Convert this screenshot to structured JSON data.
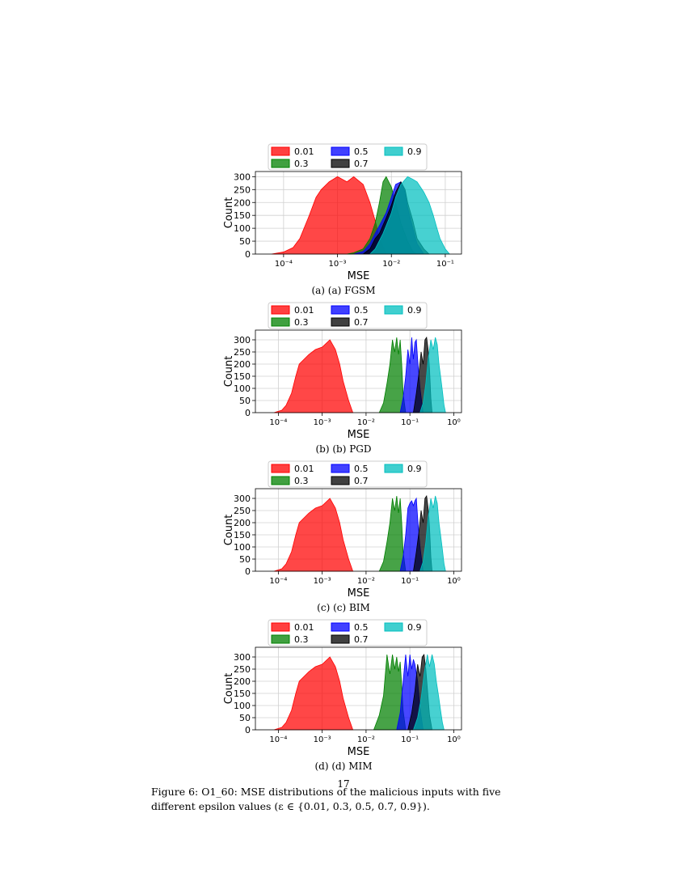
{
  "page_number": "17",
  "caption": "Figure 6: O1_60: MSE distributions of the malicious inputs with five different epsilon values (ε ∈ {0.01, 0.3, 0.5, 0.7, 0.9}).",
  "colors": {
    "0.01": "#ff0000",
    "0.3": "#008000",
    "0.5": "#0000ff",
    "0.7": "#000000",
    "0.9": "#00bfbf"
  },
  "chart_data": [
    {
      "type": "area",
      "subcaption": "(a) (a) FGSM",
      "xlabel": "MSE",
      "ylabel": "Count",
      "xscale": "log",
      "xlim": [
        3e-05,
        0.2
      ],
      "ylim": [
        0,
        320
      ],
      "xticks": [
        "10⁻⁴",
        "10⁻³",
        "10⁻²",
        "10⁻¹"
      ],
      "xtick_values": [
        0.0001,
        0.001,
        0.01,
        0.1
      ],
      "yticks": [
        0,
        50,
        100,
        150,
        200,
        250,
        300
      ],
      "grid": true,
      "legend_placement": "top-center",
      "series": [
        {
          "name": "0.01",
          "color": "#ff0000",
          "x": [
            6e-05,
            0.0001,
            0.00015,
            0.0002,
            0.0003,
            0.0004,
            0.0005,
            0.0007,
            0.001,
            0.0015,
            0.002,
            0.003,
            0.004,
            0.005,
            0.006,
            0.008
          ],
          "values": [
            0,
            8,
            25,
            60,
            150,
            220,
            250,
            280,
            300,
            280,
            300,
            270,
            200,
            130,
            60,
            0
          ]
        },
        {
          "name": "0.3",
          "color": "#008000",
          "x": [
            0.0015,
            0.002,
            0.003,
            0.004,
            0.005,
            0.006,
            0.007,
            0.008,
            0.01,
            0.012,
            0.015,
            0.02,
            0.025,
            0.03
          ],
          "values": [
            0,
            5,
            20,
            60,
            120,
            200,
            280,
            300,
            260,
            200,
            120,
            50,
            10,
            0
          ]
        },
        {
          "name": "0.5",
          "color": "#0000ff",
          "x": [
            0.002,
            0.003,
            0.004,
            0.005,
            0.006,
            0.008,
            0.01,
            0.012,
            0.015,
            0.018,
            0.02,
            0.025,
            0.03,
            0.04
          ],
          "values": [
            0,
            10,
            40,
            80,
            110,
            160,
            220,
            270,
            280,
            240,
            180,
            100,
            40,
            0
          ]
        },
        {
          "name": "0.7",
          "color": "#000000",
          "x": [
            0.003,
            0.004,
            0.005,
            0.006,
            0.008,
            0.01,
            0.012,
            0.015,
            0.018,
            0.02,
            0.025,
            0.03,
            0.04,
            0.05
          ],
          "values": [
            0,
            20,
            60,
            80,
            140,
            190,
            240,
            280,
            250,
            200,
            130,
            60,
            20,
            0
          ]
        },
        {
          "name": "0.9",
          "color": "#00bfbf",
          "x": [
            0.004,
            0.005,
            0.007,
            0.01,
            0.012,
            0.015,
            0.02,
            0.025,
            0.03,
            0.04,
            0.05,
            0.06,
            0.07,
            0.08,
            0.1,
            0.12
          ],
          "values": [
            0,
            20,
            80,
            160,
            220,
            270,
            300,
            290,
            280,
            240,
            200,
            150,
            100,
            60,
            20,
            0
          ]
        }
      ]
    },
    {
      "type": "area",
      "subcaption": "(b) (b) PGD",
      "xlabel": "MSE",
      "ylabel": "Count",
      "xscale": "log",
      "xlim": [
        3e-05,
        1.5
      ],
      "ylim": [
        0,
        340
      ],
      "xticks": [
        "10⁻⁴",
        "10⁻³",
        "10⁻²",
        "10⁻¹",
        "10⁰"
      ],
      "xtick_values": [
        0.0001,
        0.001,
        0.01,
        0.1,
        1
      ],
      "yticks": [
        0,
        50,
        100,
        150,
        200,
        250,
        300
      ],
      "grid": true,
      "legend_placement": "top-center",
      "series": [
        {
          "name": "0.01",
          "color": "#ff0000",
          "x": [
            8e-05,
            0.00012,
            0.00015,
            0.0002,
            0.00025,
            0.0003,
            0.0005,
            0.0007,
            0.001,
            0.0015,
            0.002,
            0.0025,
            0.003,
            0.004,
            0.005
          ],
          "values": [
            0,
            10,
            30,
            80,
            150,
            200,
            240,
            260,
            270,
            300,
            260,
            200,
            130,
            50,
            0
          ]
        },
        {
          "name": "0.3",
          "color": "#008000",
          "x": [
            0.02,
            0.025,
            0.03,
            0.035,
            0.04,
            0.045,
            0.05,
            0.055,
            0.06,
            0.065,
            0.07,
            0.08
          ],
          "values": [
            0,
            40,
            120,
            200,
            300,
            250,
            310,
            240,
            300,
            200,
            80,
            0
          ]
        },
        {
          "name": "0.5",
          "color": "#0000ff",
          "x": [
            0.06,
            0.07,
            0.08,
            0.09,
            0.1,
            0.11,
            0.12,
            0.13,
            0.14,
            0.15,
            0.17,
            0.2
          ],
          "values": [
            0,
            60,
            150,
            260,
            200,
            310,
            220,
            290,
            300,
            220,
            100,
            0
          ]
        },
        {
          "name": "0.7",
          "color": "#000000",
          "x": [
            0.12,
            0.14,
            0.16,
            0.18,
            0.2,
            0.22,
            0.24,
            0.26,
            0.28,
            0.3,
            0.32
          ],
          "values": [
            0,
            80,
            160,
            250,
            200,
            300,
            310,
            260,
            180,
            60,
            0
          ]
        },
        {
          "name": "0.9",
          "color": "#00bfbf",
          "x": [
            0.17,
            0.2,
            0.23,
            0.26,
            0.3,
            0.34,
            0.38,
            0.42,
            0.46,
            0.5,
            0.55,
            0.6,
            0.65
          ],
          "values": [
            0,
            40,
            120,
            220,
            300,
            260,
            310,
            280,
            200,
            150,
            90,
            30,
            0
          ]
        }
      ]
    },
    {
      "type": "area",
      "subcaption": "(c) (c) BIM",
      "xlabel": "MSE",
      "ylabel": "Count",
      "xscale": "log",
      "xlim": [
        3e-05,
        1.5
      ],
      "ylim": [
        0,
        340
      ],
      "xticks": [
        "10⁻⁴",
        "10⁻³",
        "10⁻²",
        "10⁻¹",
        "10⁰"
      ],
      "xtick_values": [
        0.0001,
        0.001,
        0.01,
        0.1,
        1
      ],
      "yticks": [
        0,
        50,
        100,
        150,
        200,
        250,
        300
      ],
      "grid": true,
      "legend_placement": "top-center",
      "series": [
        {
          "name": "0.01",
          "color": "#ff0000",
          "x": [
            8e-05,
            0.00012,
            0.00015,
            0.0002,
            0.00025,
            0.0003,
            0.0005,
            0.0007,
            0.001,
            0.0015,
            0.002,
            0.0025,
            0.003,
            0.004,
            0.005
          ],
          "values": [
            0,
            10,
            30,
            80,
            150,
            200,
            240,
            260,
            270,
            300,
            260,
            200,
            130,
            50,
            0
          ]
        },
        {
          "name": "0.3",
          "color": "#008000",
          "x": [
            0.02,
            0.025,
            0.03,
            0.035,
            0.04,
            0.045,
            0.05,
            0.055,
            0.06,
            0.065,
            0.07,
            0.08
          ],
          "values": [
            0,
            40,
            120,
            200,
            300,
            250,
            310,
            240,
            300,
            200,
            80,
            0
          ]
        },
        {
          "name": "0.5",
          "color": "#0000ff",
          "x": [
            0.06,
            0.07,
            0.08,
            0.09,
            0.1,
            0.11,
            0.12,
            0.13,
            0.14,
            0.15,
            0.17,
            0.2
          ],
          "values": [
            0,
            60,
            150,
            260,
            280,
            290,
            270,
            290,
            300,
            220,
            100,
            0
          ]
        },
        {
          "name": "0.7",
          "color": "#000000",
          "x": [
            0.12,
            0.14,
            0.16,
            0.18,
            0.2,
            0.22,
            0.24,
            0.26,
            0.28,
            0.3,
            0.32
          ],
          "values": [
            0,
            80,
            160,
            250,
            200,
            300,
            310,
            260,
            180,
            60,
            0
          ]
        },
        {
          "name": "0.9",
          "color": "#00bfbf",
          "x": [
            0.17,
            0.2,
            0.23,
            0.26,
            0.3,
            0.34,
            0.38,
            0.42,
            0.46,
            0.5,
            0.55,
            0.6,
            0.65
          ],
          "values": [
            0,
            40,
            120,
            220,
            300,
            260,
            310,
            280,
            200,
            150,
            90,
            30,
            0
          ]
        }
      ]
    },
    {
      "type": "area",
      "subcaption": "(d) (d) MIM",
      "xlabel": "MSE",
      "ylabel": "Count",
      "xscale": "log",
      "xlim": [
        3e-05,
        1.5
      ],
      "ylim": [
        0,
        340
      ],
      "xticks": [
        "10⁻⁴",
        "10⁻³",
        "10⁻²",
        "10⁻¹",
        "10⁰"
      ],
      "xtick_values": [
        0.0001,
        0.001,
        0.01,
        0.1,
        1
      ],
      "yticks": [
        0,
        50,
        100,
        150,
        200,
        250,
        300
      ],
      "grid": true,
      "legend_placement": "top-center",
      "series": [
        {
          "name": "0.01",
          "color": "#ff0000",
          "x": [
            8e-05,
            0.00012,
            0.00015,
            0.0002,
            0.00025,
            0.0003,
            0.0005,
            0.0007,
            0.001,
            0.0015,
            0.002,
            0.0025,
            0.003,
            0.004,
            0.005
          ],
          "values": [
            0,
            10,
            30,
            80,
            150,
            200,
            240,
            260,
            270,
            300,
            260,
            200,
            130,
            50,
            0
          ]
        },
        {
          "name": "0.3",
          "color": "#008000",
          "x": [
            0.015,
            0.02,
            0.025,
            0.03,
            0.035,
            0.04,
            0.045,
            0.05,
            0.055,
            0.06,
            0.065,
            0.07,
            0.08
          ],
          "values": [
            0,
            60,
            140,
            310,
            230,
            310,
            250,
            300,
            240,
            280,
            180,
            80,
            0
          ]
        },
        {
          "name": "0.5",
          "color": "#0000ff",
          "x": [
            0.05,
            0.06,
            0.07,
            0.08,
            0.09,
            0.1,
            0.11,
            0.12,
            0.13,
            0.15,
            0.17,
            0.2
          ],
          "values": [
            0,
            70,
            200,
            310,
            220,
            310,
            250,
            290,
            270,
            200,
            90,
            0
          ]
        },
        {
          "name": "0.7",
          "color": "#000000",
          "x": [
            0.09,
            0.11,
            0.13,
            0.15,
            0.17,
            0.19,
            0.21,
            0.23,
            0.25,
            0.28,
            0.32
          ],
          "values": [
            0,
            70,
            160,
            270,
            220,
            300,
            310,
            250,
            170,
            60,
            0
          ]
        },
        {
          "name": "0.9",
          "color": "#00bfbf",
          "x": [
            0.12,
            0.15,
            0.18,
            0.21,
            0.25,
            0.28,
            0.32,
            0.36,
            0.4,
            0.45,
            0.5,
            0.55,
            0.6
          ],
          "values": [
            0,
            50,
            130,
            230,
            310,
            260,
            310,
            270,
            200,
            140,
            80,
            30,
            0
          ]
        }
      ]
    }
  ]
}
